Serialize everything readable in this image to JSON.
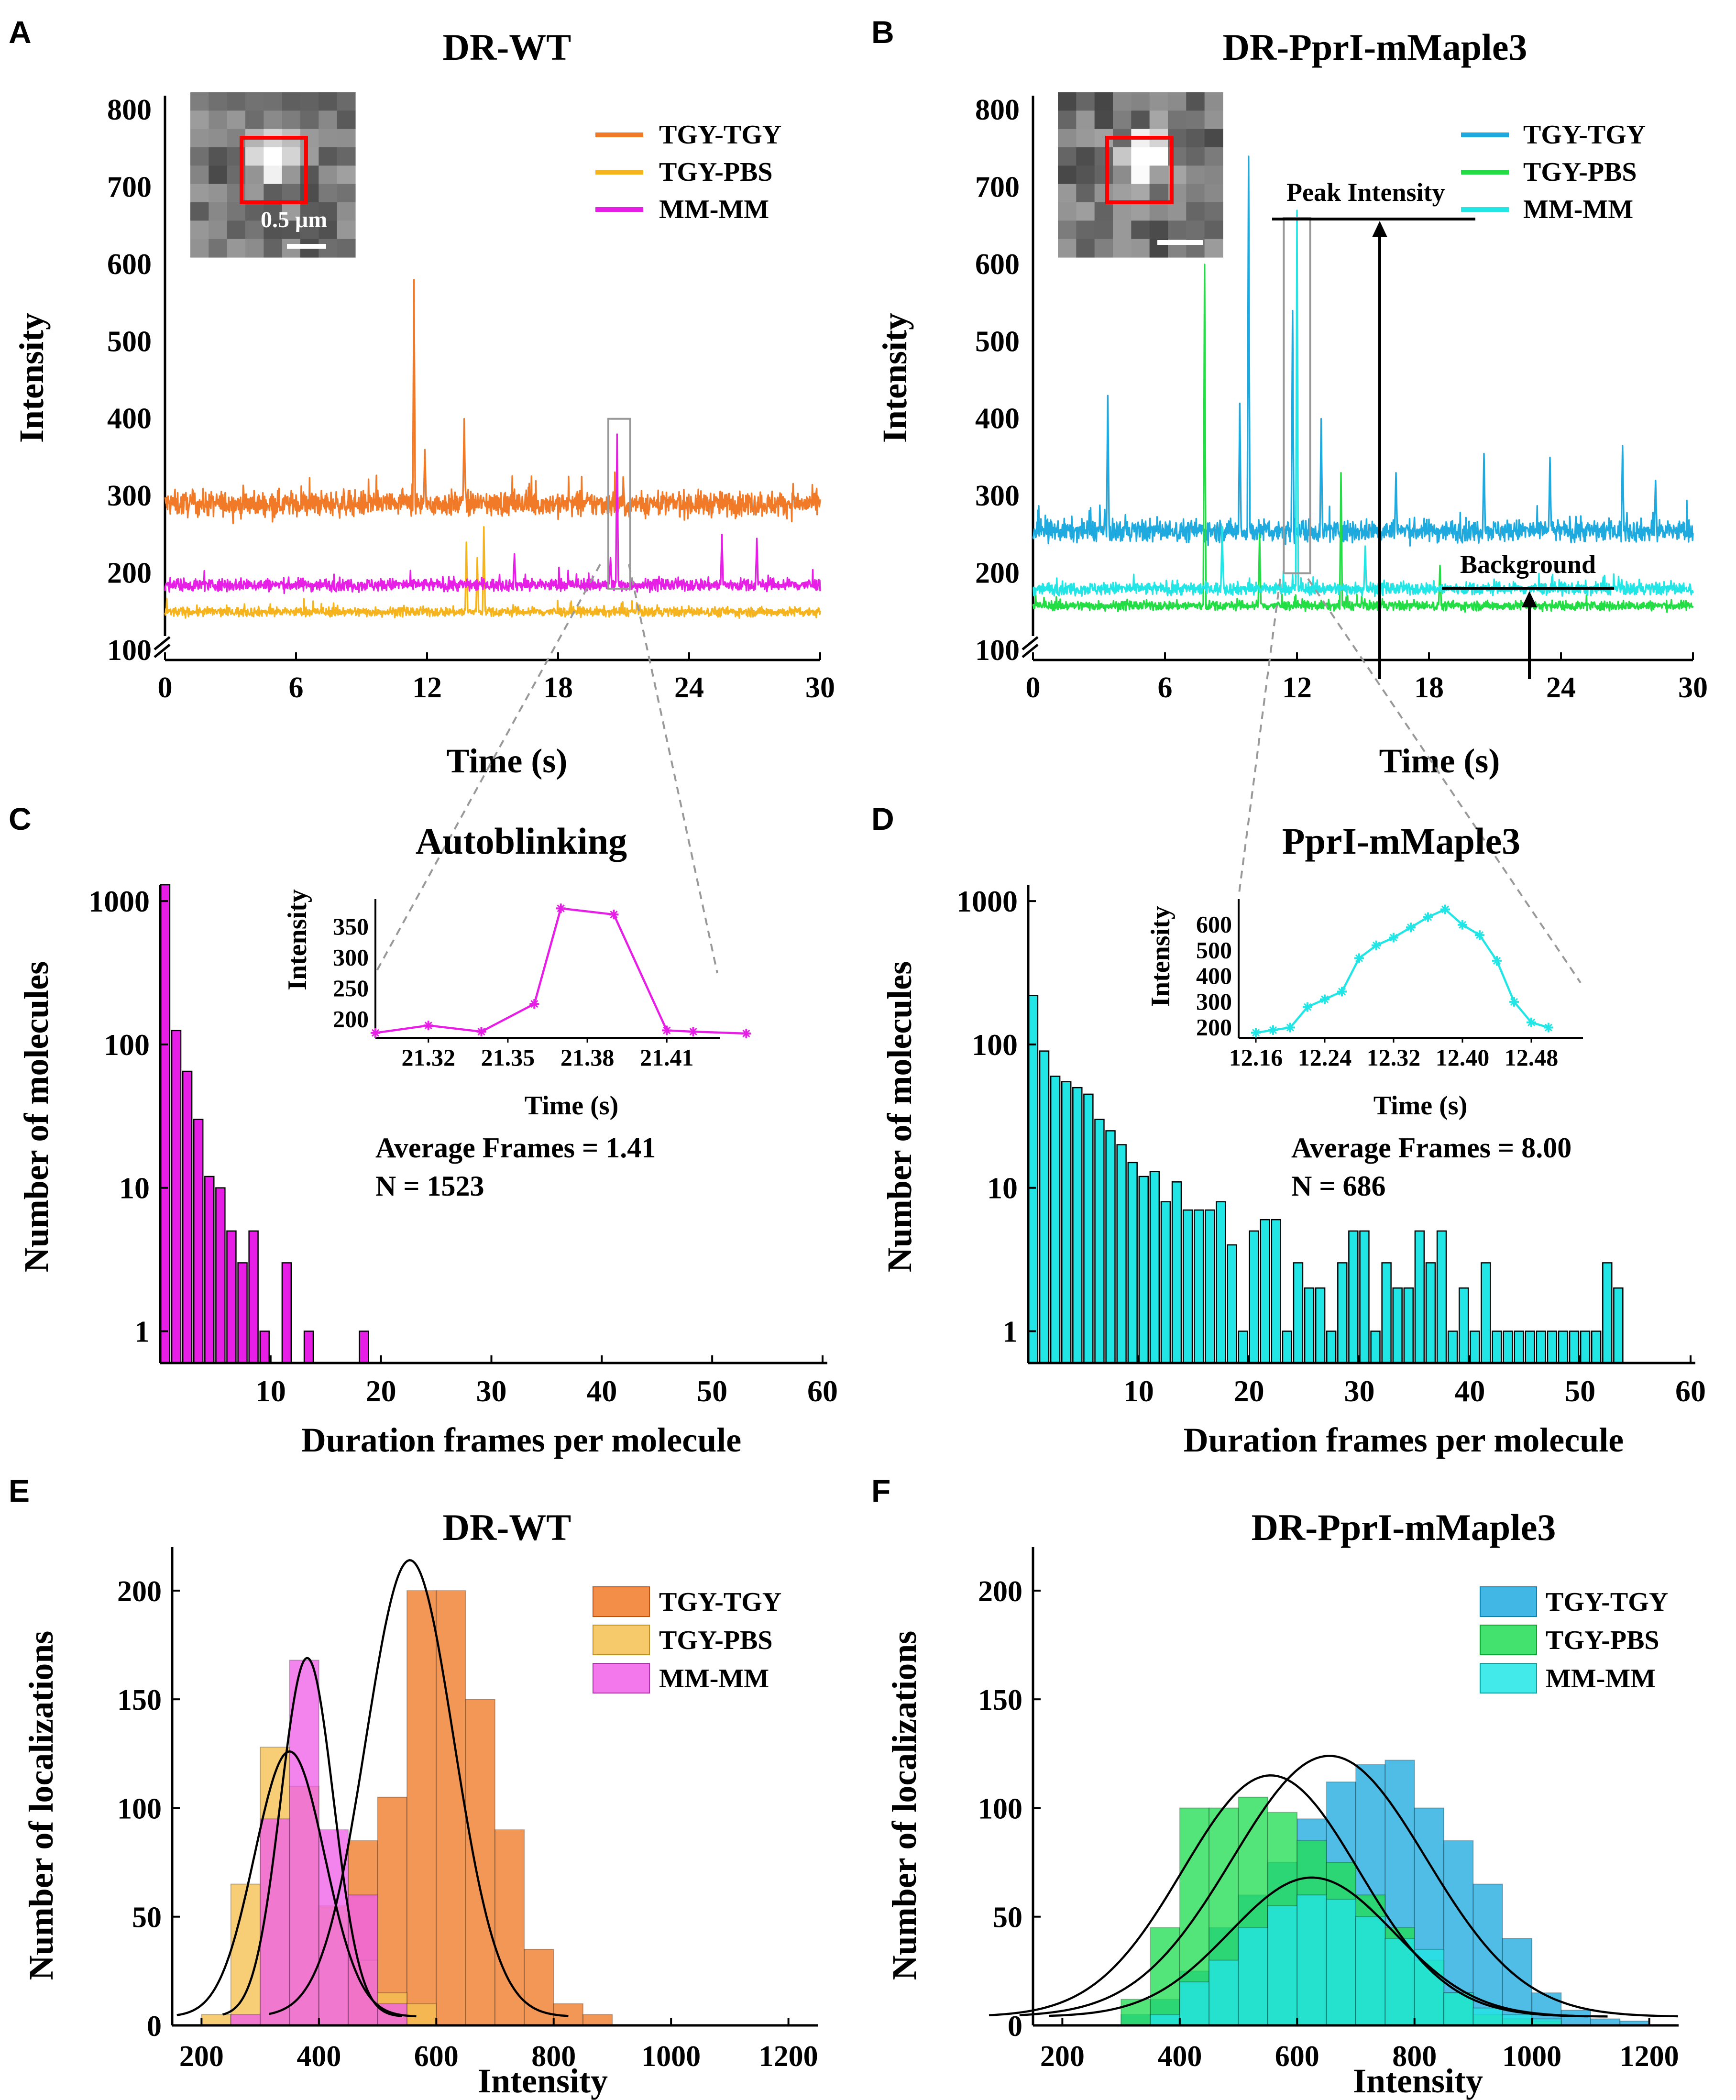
{
  "figure": {
    "panels": [
      "A",
      "B",
      "C",
      "D",
      "E",
      "F"
    ]
  },
  "chart_data": [
    {
      "panel": "A",
      "type": "line",
      "title": "DR-WT",
      "xlabel": "Time (s)",
      "ylabel": "Intensity",
      "xlim": [
        0,
        30
      ],
      "ylim": [
        100,
        800
      ],
      "xticks": [
        0,
        6,
        12,
        18,
        24,
        30
      ],
      "yticks": [
        100,
        200,
        300,
        400,
        500,
        600,
        700,
        800
      ],
      "axis_break": true,
      "inset_scale_label": "0.5 μm",
      "series": [
        {
          "name": "TGY-TGY",
          "color": "#F07A28",
          "baseline": 290,
          "noise": 16,
          "peaks": [
            {
              "t": 11.4,
              "v": 580
            },
            {
              "t": 13.7,
              "v": 400
            },
            {
              "t": 11.9,
              "v": 360
            },
            {
              "t": 5.3,
              "v": 250
            }
          ]
        },
        {
          "name": "TGY-PBS",
          "color": "#F5B41E",
          "baseline": 150,
          "noise": 6,
          "peaks": [
            {
              "t": 13.8,
              "v": 240
            },
            {
              "t": 14.6,
              "v": 260
            },
            {
              "t": 14.3,
              "v": 220
            }
          ]
        },
        {
          "name": "MM-MM",
          "color": "#E61EE6",
          "baseline": 185,
          "noise": 8,
          "peaks": [
            {
              "t": 20.7,
              "v": 380
            },
            {
              "t": 20.4,
              "v": 220
            },
            {
              "t": 25.5,
              "v": 250
            },
            {
              "t": 27.1,
              "v": 245
            },
            {
              "t": 16.0,
              "v": 225
            }
          ]
        }
      ],
      "highlight_window": {
        "t0": 20.3,
        "t1": 21.3,
        "v0": 180,
        "v1": 400
      }
    },
    {
      "panel": "B",
      "type": "line",
      "title": "DR-PprI-mMaple3",
      "xlabel": "Time (s)",
      "ylabel": "Intensity",
      "xlim": [
        0,
        30
      ],
      "ylim": [
        100,
        800
      ],
      "xticks": [
        0,
        6,
        12,
        18,
        24,
        30
      ],
      "yticks": [
        100,
        200,
        300,
        400,
        500,
        600,
        700,
        800
      ],
      "axis_break": true,
      "annotations": [
        "Peak Intensity",
        "Background"
      ],
      "series": [
        {
          "name": "TGY-TGY",
          "color": "#1EAADF",
          "baseline": 255,
          "noise": 14,
          "peaks": [
            {
              "t": 3.4,
              "v": 430
            },
            {
              "t": 9.8,
              "v": 740
            },
            {
              "t": 9.4,
              "v": 420
            },
            {
              "t": 11.8,
              "v": 540
            },
            {
              "t": 13.1,
              "v": 400
            },
            {
              "t": 16.5,
              "v": 330
            },
            {
              "t": 20.5,
              "v": 355
            },
            {
              "t": 23.5,
              "v": 350
            },
            {
              "t": 26.8,
              "v": 365
            },
            {
              "t": 28.3,
              "v": 320
            }
          ]
        },
        {
          "name": "TGY-PBS",
          "color": "#22DD44",
          "baseline": 158,
          "noise": 6,
          "peaks": [
            {
              "t": 7.8,
              "v": 600
            },
            {
              "t": 14.0,
              "v": 330
            },
            {
              "t": 10.3,
              "v": 250
            },
            {
              "t": 18.5,
              "v": 210
            }
          ]
        },
        {
          "name": "MM-MM",
          "color": "#22E6E6",
          "baseline": 180,
          "noise": 8,
          "peaks": [
            {
              "t": 12.0,
              "v": 670
            },
            {
              "t": 8.6,
              "v": 260
            },
            {
              "t": 15.1,
              "v": 235
            }
          ]
        }
      ],
      "highlight_window": {
        "t0": 11.4,
        "t1": 12.6,
        "v0": 200,
        "v1": 660
      }
    },
    {
      "panel": "C",
      "type": "bar",
      "title": "Autoblinking",
      "xlabel": "Duration frames per molecule",
      "ylabel": "Number of molecules",
      "yscale": "log",
      "ylim": [
        0.6,
        1300
      ],
      "xlim": [
        0,
        60
      ],
      "xticks": [
        10,
        20,
        30,
        40,
        50,
        60
      ],
      "yticks": [
        1,
        10,
        100,
        1000
      ],
      "color": "#E61EE6",
      "x": [
        1,
        2,
        3,
        4,
        5,
        6,
        7,
        8,
        9,
        10,
        12,
        14,
        19
      ],
      "values": [
        1300,
        125,
        65,
        30,
        12,
        10,
        5,
        3,
        5,
        1,
        3,
        1,
        1
      ],
      "stats": [
        "Average Frames = 1.41",
        "N = 1523"
      ],
      "inset": {
        "type": "line",
        "xlabel": "Time (s)",
        "ylabel": "Intensity",
        "color": "#E61EE6",
        "xlim": [
          21.3,
          21.43
        ],
        "ylim": [
          170,
          395
        ],
        "xticks": [
          "21.32",
          "21.35",
          "21.38",
          "21.41"
        ],
        "yticks": [
          200,
          250,
          300,
          350
        ],
        "x": [
          21.3,
          21.32,
          21.34,
          21.36,
          21.37,
          21.39,
          21.41,
          21.42,
          21.44
        ],
        "y": [
          178,
          190,
          180,
          225,
          380,
          370,
          182,
          180,
          177
        ]
      }
    },
    {
      "panel": "D",
      "type": "bar",
      "title": "PprI-mMaple3",
      "xlabel": "Duration frames per molecule",
      "ylabel": "Number of molecules",
      "yscale": "log",
      "ylim": [
        0.6,
        1300
      ],
      "xlim": [
        0,
        60
      ],
      "xticks": [
        10,
        20,
        30,
        40,
        50,
        60
      ],
      "yticks": [
        1,
        10,
        100,
        1000
      ],
      "color": "#22E6E6",
      "x": [
        1,
        2,
        3,
        4,
        5,
        6,
        7,
        8,
        9,
        10,
        11,
        12,
        13,
        14,
        15,
        16,
        17,
        18,
        19,
        20,
        21,
        22,
        23,
        24,
        25,
        26,
        27,
        28,
        29,
        30,
        31,
        32,
        33,
        34,
        35,
        36,
        37,
        38,
        39,
        40,
        41,
        42,
        43,
        44,
        45,
        46,
        47,
        48,
        49,
        50,
        51,
        52,
        53,
        54
      ],
      "values": [
        220,
        90,
        60,
        55,
        50,
        45,
        30,
        25,
        20,
        15,
        12,
        13,
        8,
        11,
        7,
        7,
        7,
        8,
        4,
        1,
        5,
        6,
        6,
        1,
        3,
        2,
        2,
        1,
        3,
        5,
        5,
        1,
        3,
        2,
        2,
        5,
        3,
        5,
        1,
        2,
        1,
        3,
        1,
        1,
        1,
        1,
        1,
        1,
        1,
        1,
        1,
        1,
        3,
        2
      ],
      "stats": [
        "Average Frames = 8.00",
        "N = 686"
      ],
      "inset": {
        "type": "line",
        "xlabel": "Time (s)",
        "ylabel": "Intensity",
        "color": "#22E6E6",
        "xlim": [
          12.14,
          12.54
        ],
        "ylim": [
          160,
          700
        ],
        "xticks": [
          "12.16",
          "12.24",
          "12.32",
          "12.40",
          "12.48"
        ],
        "yticks": [
          200,
          300,
          400,
          500,
          600
        ],
        "x": [
          12.16,
          12.18,
          12.2,
          12.22,
          12.24,
          12.26,
          12.28,
          12.3,
          12.32,
          12.34,
          12.36,
          12.38,
          12.4,
          12.42,
          12.44,
          12.46,
          12.48,
          12.5
        ],
        "y": [
          180,
          190,
          200,
          280,
          310,
          340,
          470,
          520,
          550,
          590,
          630,
          660,
          600,
          560,
          460,
          300,
          220,
          200
        ]
      }
    },
    {
      "panel": "E",
      "type": "histogram",
      "title": "DR-WT",
      "xlabel": "Intensity",
      "ylabel": "Number of localizations",
      "xlim": [
        150,
        1250
      ],
      "ylim": [
        0,
        220
      ],
      "xticks": [
        200,
        400,
        600,
        800,
        1000,
        1200
      ],
      "yticks": [
        0,
        50,
        100,
        150,
        200
      ],
      "bin_width": 50,
      "series": [
        {
          "name": "TGY-TGY",
          "color": "#F07A28",
          "bins": [
            450,
            500,
            550,
            600,
            650,
            700,
            750,
            800,
            850
          ],
          "values": [
            85,
            105,
            200,
            200,
            150,
            90,
            35,
            10,
            5
          ],
          "fit": {
            "mean": 555,
            "sd": 75,
            "peak": 210
          }
        },
        {
          "name": "TGY-PBS",
          "color": "#F5C050",
          "bins": [
            200,
            250,
            300,
            350,
            400,
            450,
            500,
            550
          ],
          "values": [
            5,
            65,
            128,
            110,
            55,
            30,
            15,
            10
          ],
          "fit": {
            "mean": 350,
            "sd": 60,
            "peak": 122
          }
        },
        {
          "name": "MM-MM",
          "color": "#F060E8",
          "bins": [
            250,
            300,
            350,
            400,
            450,
            500
          ],
          "values": [
            5,
            95,
            168,
            90,
            60,
            10
          ],
          "fit": {
            "mean": 380,
            "sd": 45,
            "peak": 165
          }
        }
      ]
    },
    {
      "panel": "F",
      "type": "histogram",
      "title": "DR-PprI-mMaple3",
      "xlabel": "Intensity",
      "ylabel": "Number of localizations",
      "xlim": [
        150,
        1250
      ],
      "ylim": [
        0,
        220
      ],
      "xticks": [
        200,
        400,
        600,
        800,
        1000,
        1200
      ],
      "yticks": [
        0,
        50,
        100,
        150,
        200
      ],
      "bin_width": 50,
      "series": [
        {
          "name": "TGY-TGY",
          "color": "#1EAADF",
          "bins": [
            300,
            350,
            400,
            450,
            500,
            550,
            600,
            650,
            700,
            750,
            800,
            850,
            900,
            950,
            1000,
            1050,
            1100,
            1150
          ],
          "values": [
            5,
            12,
            25,
            45,
            60,
            75,
            95,
            112,
            120,
            122,
            100,
            85,
            65,
            40,
            15,
            7,
            3,
            2
          ],
          "fit": {
            "mean": 655,
            "sd": 165,
            "peak": 120
          }
        },
        {
          "name": "TGY-PBS",
          "color": "#22DD55",
          "bins": [
            300,
            350,
            400,
            450,
            500,
            550,
            600,
            650,
            700,
            750,
            800,
            850,
            900,
            950,
            1000
          ],
          "values": [
            12,
            45,
            100,
            100,
            105,
            98,
            85,
            75,
            60,
            45,
            30,
            15,
            5,
            3,
            2
          ],
          "fit": {
            "mean": 555,
            "sd": 150,
            "peak": 111
          }
        },
        {
          "name": "MM-MM",
          "color": "#22E6E6",
          "bins": [
            350,
            400,
            450,
            500,
            550,
            600,
            650,
            700,
            750,
            800,
            850,
            900,
            950,
            1000
          ],
          "values": [
            5,
            20,
            30,
            45,
            55,
            60,
            58,
            50,
            40,
            35,
            15,
            8,
            5,
            3
          ],
          "fit": {
            "mean": 625,
            "sd": 140,
            "peak": 64
          }
        }
      ]
    }
  ]
}
